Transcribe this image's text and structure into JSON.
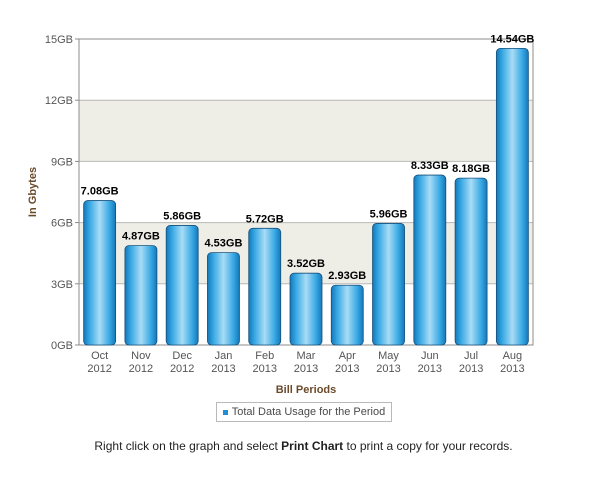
{
  "chart_data": {
    "type": "bar",
    "title": "",
    "xlabel": "Bill Periods",
    "ylabel": "In Gbytes",
    "ylim": [
      0,
      15
    ],
    "yticks": [
      "0GB",
      "3GB",
      "6GB",
      "9GB",
      "12GB",
      "15GB"
    ],
    "ytick_values": [
      0,
      3,
      6,
      9,
      12,
      15
    ],
    "grid": true,
    "legend_position": "bottom-center",
    "categories": [
      [
        "Oct",
        "2012"
      ],
      [
        "Nov",
        "2012"
      ],
      [
        "Dec",
        "2012"
      ],
      [
        "Jan",
        "2013"
      ],
      [
        "Feb",
        "2013"
      ],
      [
        "Mar",
        "2013"
      ],
      [
        "Apr",
        "2013"
      ],
      [
        "May",
        "2013"
      ],
      [
        "Jun",
        "2013"
      ],
      [
        "Jul",
        "2013"
      ],
      [
        "Aug",
        "2013"
      ]
    ],
    "series": [
      {
        "name": "Total Data Usage for the Period",
        "values": [
          7.08,
          4.87,
          5.86,
          4.53,
          5.72,
          3.52,
          2.93,
          5.96,
          8.33,
          8.18,
          14.54
        ],
        "labels": [
          "7.08GB",
          "4.87GB",
          "5.86GB",
          "4.53GB",
          "5.72GB",
          "3.52GB",
          "2.93GB",
          "5.96GB",
          "8.33GB",
          "8.18GB",
          "14.54GB"
        ]
      }
    ],
    "colors": {
      "bar": "#35a7e3",
      "bar_light": "#a8dcf6",
      "bar_dark": "#1677b8",
      "bar_edge": "#14507e",
      "band": "#efeee6",
      "grid": "#b8b8b8"
    }
  },
  "footer": {
    "note_before": "Right click on the graph and select ",
    "note_bold": "Print Chart",
    "note_after": " to print a copy for your records."
  }
}
